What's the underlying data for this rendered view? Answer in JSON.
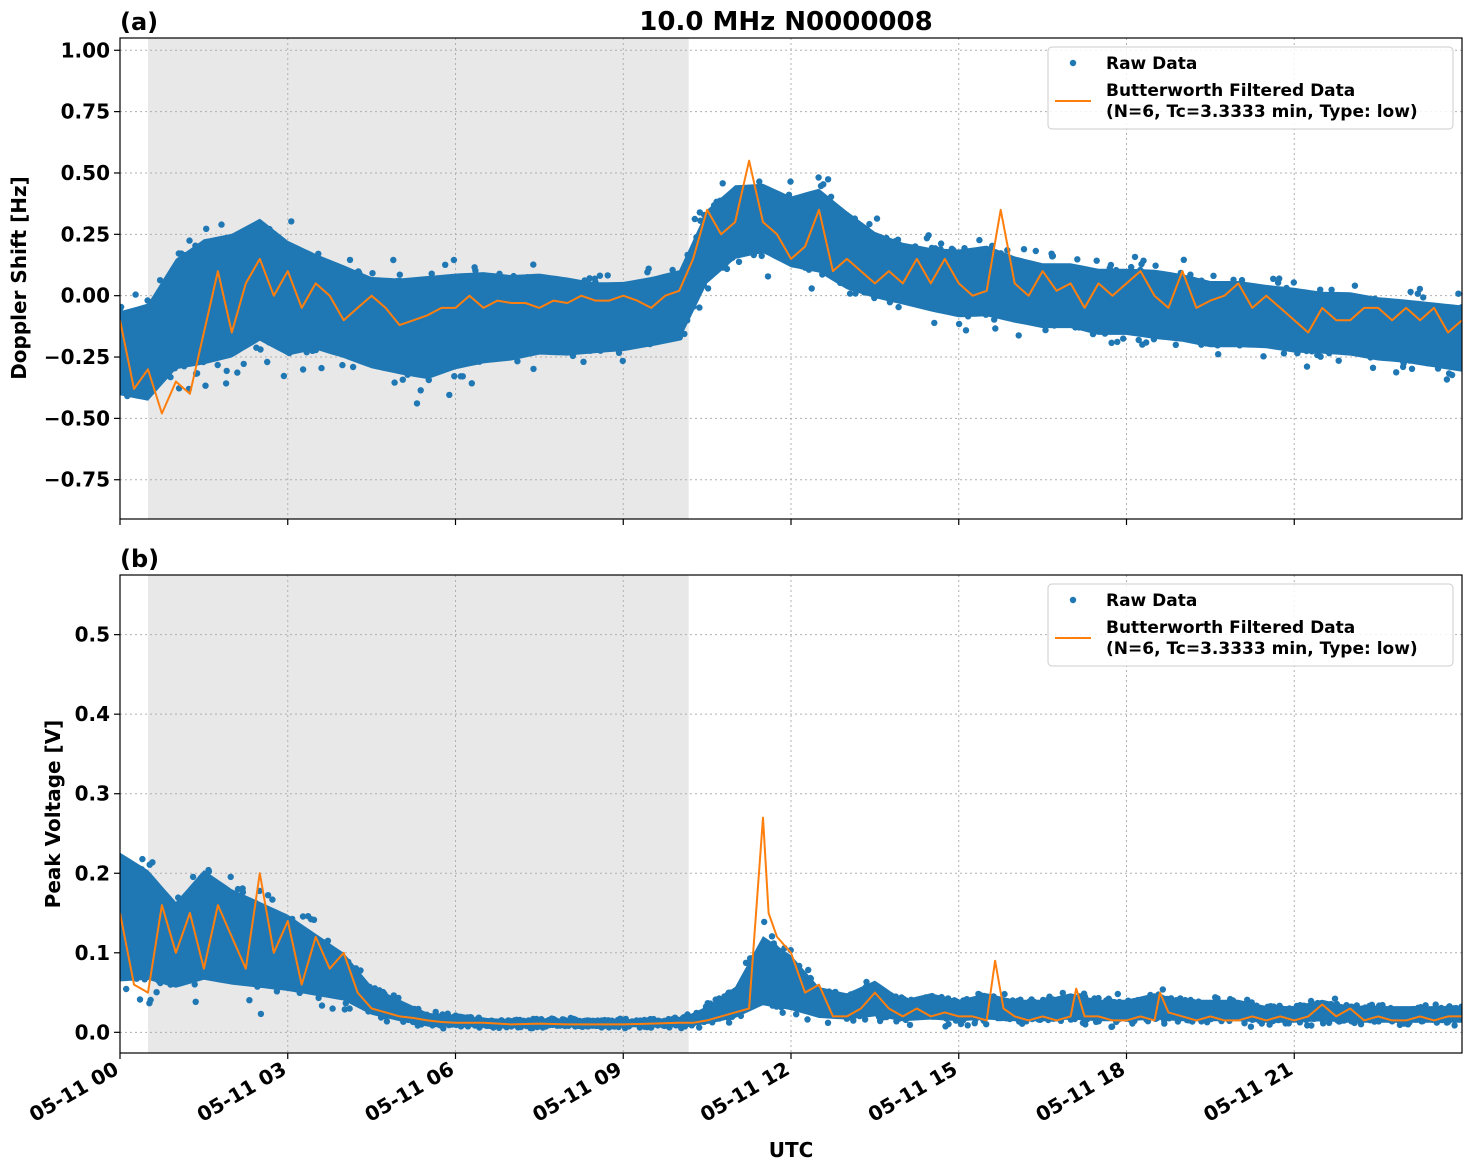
{
  "figure": {
    "title": "10.0 MHz N0000008",
    "xlabel": "UTC"
  },
  "colors": {
    "raw": "#1f77b4",
    "filtered": "#ff7f0e",
    "shade": "#e8e8e8",
    "grid": "#b0b0b0"
  },
  "chart_data": [
    {
      "type": "scatter",
      "panel_label": "(a)",
      "title": "10.0 MHz N0000008",
      "ylabel": "Doppler Shift [Hz]",
      "xlabel": "",
      "x_unit": "UTC hours since 05-11 00:00",
      "xlim": [
        0,
        24
      ],
      "ylim": [
        -0.91,
        1.05
      ],
      "yticks": [
        1.0,
        0.75,
        0.5,
        0.25,
        0.0,
        -0.25,
        -0.5,
        -0.75
      ],
      "ytick_labels": [
        "1.00",
        "0.75",
        "0.50",
        "0.25",
        "0.00",
        "−0.25",
        "−0.50",
        "−0.75"
      ],
      "xticks": [
        0,
        3,
        6,
        9,
        12,
        15,
        18,
        21
      ],
      "grid": true,
      "shaded_interval": [
        0.5,
        10.17
      ],
      "legend": {
        "position": "top-right",
        "entries": [
          "Raw Data",
          "Butterworth Filtered Data",
          "(N=6, Tc=3.3333 min, Type: low)"
        ]
      },
      "series": [
        {
          "name": "Raw Data",
          "kind": "scatter-band",
          "x": [
            0,
            0.5,
            1,
            1.5,
            2,
            2.5,
            3,
            3.5,
            4,
            4.5,
            5,
            5.5,
            6,
            6.5,
            7,
            7.5,
            8,
            8.5,
            9,
            9.5,
            10,
            10.5,
            11,
            11.5,
            12,
            12.5,
            13,
            13.5,
            14,
            14.5,
            15,
            15.5,
            16,
            16.5,
            17,
            17.5,
            18,
            18.5,
            19,
            19.5,
            20,
            20.5,
            21,
            21.5,
            22,
            22.5,
            23,
            23.5,
            24
          ],
          "y_low": [
            -0.52,
            -0.56,
            -0.45,
            -0.45,
            -0.42,
            -0.35,
            -0.4,
            -0.35,
            -0.38,
            -0.42,
            -0.45,
            -0.48,
            -0.43,
            -0.4,
            -0.38,
            -0.35,
            -0.35,
            -0.33,
            -0.32,
            -0.3,
            -0.28,
            -0.05,
            0.05,
            0.08,
            0.02,
            -0.02,
            -0.08,
            -0.1,
            -0.12,
            -0.15,
            -0.18,
            -0.18,
            -0.2,
            -0.22,
            -0.22,
            -0.25,
            -0.25,
            -0.27,
            -0.28,
            -0.3,
            -0.3,
            -0.3,
            -0.32,
            -0.32,
            -0.33,
            -0.35,
            -0.36,
            -0.38,
            -0.4
          ],
          "y_high": [
            0.05,
            0.1,
            0.3,
            0.4,
            0.42,
            0.48,
            0.38,
            0.3,
            0.25,
            0.2,
            0.2,
            0.22,
            0.22,
            0.22,
            0.2,
            0.2,
            0.18,
            0.15,
            0.15,
            0.17,
            0.2,
            0.45,
            0.55,
            0.55,
            0.5,
            0.55,
            0.45,
            0.35,
            0.3,
            0.28,
            0.28,
            0.3,
            0.25,
            0.22,
            0.22,
            0.2,
            0.2,
            0.2,
            0.18,
            0.15,
            0.15,
            0.13,
            0.12,
            0.1,
            0.1,
            0.08,
            0.07,
            0.06,
            0.05
          ]
        },
        {
          "name": "Butterworth Filtered Data",
          "kind": "line",
          "x": [
            0,
            0.25,
            0.5,
            0.75,
            1,
            1.25,
            1.5,
            1.75,
            2,
            2.25,
            2.5,
            2.75,
            3,
            3.25,
            3.5,
            3.75,
            4,
            4.25,
            4.5,
            4.75,
            5,
            5.25,
            5.5,
            5.75,
            6,
            6.25,
            6.5,
            6.75,
            7,
            7.25,
            7.5,
            7.75,
            8,
            8.25,
            8.5,
            8.75,
            9,
            9.25,
            9.5,
            9.75,
            10,
            10.25,
            10.5,
            10.75,
            11,
            11.25,
            11.5,
            11.75,
            12,
            12.25,
            12.5,
            12.75,
            13,
            13.25,
            13.5,
            13.75,
            14,
            14.25,
            14.5,
            14.75,
            15,
            15.25,
            15.5,
            15.75,
            16,
            16.25,
            16.5,
            16.75,
            17,
            17.25,
            17.5,
            17.75,
            18,
            18.25,
            18.5,
            18.75,
            19,
            19.25,
            19.5,
            19.75,
            20,
            20.25,
            20.5,
            20.75,
            21,
            21.25,
            21.5,
            21.75,
            22,
            22.25,
            22.5,
            22.75,
            23,
            23.25,
            23.5,
            23.75,
            24
          ],
          "y": [
            -0.1,
            -0.38,
            -0.3,
            -0.48,
            -0.35,
            -0.4,
            -0.15,
            0.1,
            -0.15,
            0.05,
            0.15,
            0.0,
            0.1,
            -0.05,
            0.05,
            0.0,
            -0.1,
            -0.05,
            0.0,
            -0.05,
            -0.12,
            -0.1,
            -0.08,
            -0.05,
            -0.05,
            0.0,
            -0.05,
            -0.02,
            -0.03,
            -0.03,
            -0.05,
            -0.02,
            -0.03,
            0.0,
            -0.02,
            -0.02,
            0.0,
            -0.02,
            -0.05,
            0.0,
            0.02,
            0.15,
            0.35,
            0.25,
            0.3,
            0.55,
            0.3,
            0.25,
            0.15,
            0.2,
            0.35,
            0.1,
            0.15,
            0.1,
            0.05,
            0.1,
            0.05,
            0.15,
            0.05,
            0.15,
            0.05,
            0.0,
            0.02,
            0.35,
            0.05,
            0.0,
            0.1,
            0.02,
            0.05,
            -0.05,
            0.05,
            0.0,
            0.05,
            0.1,
            0.0,
            -0.05,
            0.1,
            -0.05,
            -0.02,
            0.0,
            0.05,
            -0.05,
            0.0,
            -0.05,
            -0.1,
            -0.15,
            -0.05,
            -0.1,
            -0.1,
            -0.05,
            -0.05,
            -0.1,
            -0.05,
            -0.1,
            -0.05,
            -0.15,
            -0.1
          ]
        }
      ]
    },
    {
      "type": "scatter",
      "panel_label": "(b)",
      "title": "",
      "ylabel": "Peak Voltage [V]",
      "xlabel": "UTC",
      "x_unit": "UTC hours since 05-11 00:00",
      "xlim": [
        0,
        24
      ],
      "ylim": [
        -0.026,
        0.575
      ],
      "yticks": [
        0.5,
        0.4,
        0.3,
        0.2,
        0.1,
        0.0
      ],
      "ytick_labels": [
        "0.5",
        "0.4",
        "0.3",
        "0.2",
        "0.1",
        "0.0"
      ],
      "xticks": [
        0,
        3,
        6,
        9,
        12,
        15,
        18,
        21
      ],
      "xtick_labels": [
        "05-11 00",
        "05-11 03",
        "05-11 06",
        "05-11 09",
        "05-11 12",
        "05-11 15",
        "05-11 18",
        "05-11 21"
      ],
      "grid": true,
      "shaded_interval": [
        0.5,
        10.17
      ],
      "legend": {
        "position": "top-right",
        "entries": [
          "Raw Data",
          "Butterworth Filtered Data",
          "(N=6, Tc=3.3333 min, Type: low)"
        ]
      },
      "series": [
        {
          "name": "Raw Data",
          "kind": "scatter-band",
          "x": [
            0,
            0.5,
            1,
            1.5,
            2,
            2.5,
            3,
            3.5,
            4,
            4.5,
            5,
            5.5,
            6,
            6.5,
            7,
            7.5,
            8,
            8.5,
            9,
            9.5,
            10,
            10.5,
            11,
            11.5,
            12,
            12.5,
            13,
            13.5,
            14,
            14.5,
            15,
            15.5,
            16,
            16.5,
            17,
            17.5,
            18,
            18.5,
            19,
            19.5,
            20,
            20.5,
            21,
            21.5,
            22,
            22.5,
            23,
            23.5,
            24
          ],
          "y_low": [
            0.01,
            0.02,
            0.02,
            0.02,
            0.02,
            0.02,
            0.02,
            0.02,
            0.02,
            0.01,
            0.005,
            0.003,
            0.003,
            0.003,
            0.003,
            0.003,
            0.003,
            0.003,
            0.003,
            0.003,
            0.003,
            0.003,
            0.005,
            0.005,
            0.005,
            0.005,
            0.005,
            0.005,
            0.005,
            0.005,
            0.005,
            0.005,
            0.005,
            0.005,
            0.005,
            0.005,
            0.005,
            0.005,
            0.005,
            0.005,
            0.005,
            0.005,
            0.005,
            0.005,
            0.005,
            0.005,
            0.005,
            0.005,
            0.005
          ],
          "y_high": [
            0.28,
            0.25,
            0.2,
            0.25,
            0.22,
            0.2,
            0.18,
            0.15,
            0.12,
            0.07,
            0.05,
            0.03,
            0.025,
            0.022,
            0.02,
            0.02,
            0.02,
            0.02,
            0.02,
            0.02,
            0.02,
            0.04,
            0.07,
            0.15,
            0.12,
            0.07,
            0.06,
            0.08,
            0.05,
            0.06,
            0.05,
            0.06,
            0.05,
            0.05,
            0.06,
            0.05,
            0.05,
            0.06,
            0.05,
            0.05,
            0.05,
            0.04,
            0.04,
            0.05,
            0.04,
            0.04,
            0.04,
            0.04,
            0.04
          ]
        },
        {
          "name": "Butterworth Filtered Data",
          "kind": "line",
          "x": [
            0,
            0.25,
            0.5,
            0.75,
            1,
            1.25,
            1.5,
            1.75,
            2,
            2.25,
            2.5,
            2.75,
            3,
            3.25,
            3.5,
            3.75,
            4,
            4.25,
            4.5,
            4.75,
            5,
            5.25,
            5.5,
            5.75,
            6,
            6.5,
            7,
            7.5,
            8,
            8.5,
            9,
            9.5,
            10,
            10.25,
            10.5,
            10.75,
            11,
            11.25,
            11.5,
            11.6,
            11.75,
            12,
            12.25,
            12.5,
            12.75,
            13,
            13.25,
            13.5,
            13.75,
            14,
            14.25,
            14.5,
            14.75,
            15,
            15.25,
            15.5,
            15.65,
            15.8,
            16,
            16.25,
            16.5,
            16.75,
            17,
            17.1,
            17.25,
            17.5,
            17.75,
            18,
            18.25,
            18.5,
            18.6,
            18.75,
            19,
            19.25,
            19.5,
            19.75,
            20,
            20.25,
            20.5,
            20.75,
            21,
            21.25,
            21.5,
            21.75,
            22,
            22.25,
            22.5,
            22.75,
            23,
            23.25,
            23.5,
            23.75,
            24
          ],
          "y": [
            0.15,
            0.06,
            0.05,
            0.16,
            0.1,
            0.15,
            0.08,
            0.16,
            0.12,
            0.08,
            0.2,
            0.1,
            0.14,
            0.06,
            0.12,
            0.08,
            0.1,
            0.05,
            0.03,
            0.025,
            0.02,
            0.018,
            0.015,
            0.013,
            0.012,
            0.012,
            0.01,
            0.011,
            0.01,
            0.01,
            0.01,
            0.011,
            0.012,
            0.012,
            0.015,
            0.02,
            0.025,
            0.03,
            0.27,
            0.15,
            0.12,
            0.1,
            0.05,
            0.06,
            0.02,
            0.02,
            0.03,
            0.05,
            0.03,
            0.02,
            0.03,
            0.02,
            0.025,
            0.02,
            0.02,
            0.015,
            0.09,
            0.03,
            0.02,
            0.015,
            0.02,
            0.015,
            0.02,
            0.055,
            0.02,
            0.02,
            0.015,
            0.015,
            0.02,
            0.015,
            0.05,
            0.025,
            0.02,
            0.015,
            0.02,
            0.015,
            0.015,
            0.02,
            0.015,
            0.02,
            0.015,
            0.02,
            0.035,
            0.02,
            0.03,
            0.015,
            0.02,
            0.015,
            0.015,
            0.02,
            0.015,
            0.02,
            0.02
          ]
        }
      ]
    }
  ]
}
